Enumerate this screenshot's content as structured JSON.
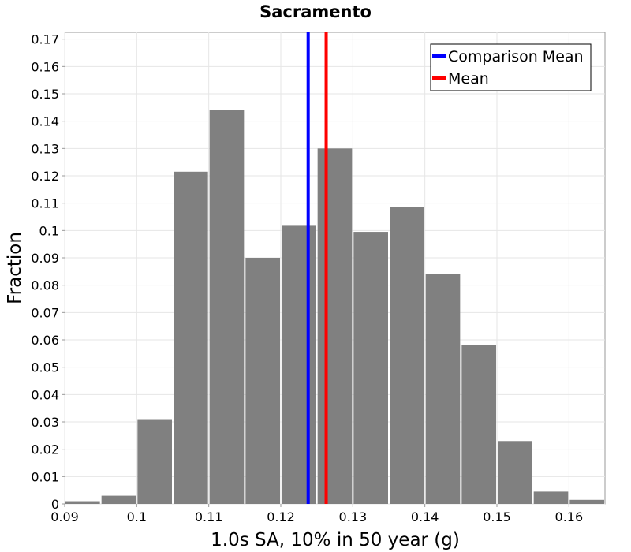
{
  "chart_data": {
    "type": "bar",
    "title": "Sacramento",
    "xlabel": "1.0s SA, 10% in 50 year (g)",
    "ylabel": "Fraction",
    "xlim": [
      0.09,
      0.165
    ],
    "ylim": [
      0,
      0.1725
    ],
    "xticks": [
      0.09,
      0.1,
      0.11,
      0.12,
      0.13,
      0.14,
      0.15,
      0.16
    ],
    "xtick_labels": [
      "0.09",
      "0.1",
      "0.11",
      "0.12",
      "0.13",
      "0.14",
      "0.15",
      "0.16"
    ],
    "yticks": [
      0,
      0.01,
      0.02,
      0.03,
      0.04,
      0.05,
      0.06,
      0.07,
      0.08,
      0.09,
      0.1,
      0.11,
      0.12,
      0.13,
      0.14,
      0.15,
      0.16,
      0.17
    ],
    "ytick_labels": [
      "0",
      "0.01",
      "0.02",
      "0.03",
      "0.04",
      "0.05",
      "0.06",
      "0.07",
      "0.08",
      "0.09",
      "0.1",
      "0.11",
      "0.12",
      "0.13",
      "0.14",
      "0.15",
      "0.16",
      "0.17"
    ],
    "bin_width": 0.005,
    "bins": [
      {
        "x": 0.0925,
        "value": 0.001
      },
      {
        "x": 0.0975,
        "value": 0.003
      },
      {
        "x": 0.1025,
        "value": 0.031
      },
      {
        "x": 0.1075,
        "value": 0.1215
      },
      {
        "x": 0.1125,
        "value": 0.144
      },
      {
        "x": 0.1175,
        "value": 0.09
      },
      {
        "x": 0.1225,
        "value": 0.102
      },
      {
        "x": 0.1275,
        "value": 0.13
      },
      {
        "x": 0.1325,
        "value": 0.0995
      },
      {
        "x": 0.1375,
        "value": 0.1085
      },
      {
        "x": 0.1425,
        "value": 0.084
      },
      {
        "x": 0.1475,
        "value": 0.058
      },
      {
        "x": 0.1525,
        "value": 0.023
      },
      {
        "x": 0.1575,
        "value": 0.0045
      },
      {
        "x": 0.1625,
        "value": 0.0015
      }
    ],
    "vlines": [
      {
        "name": "Comparison Mean",
        "x": 0.1238,
        "color": "#0000ff"
      },
      {
        "name": "Mean",
        "x": 0.1263,
        "color": "#ff0000"
      }
    ],
    "bar_color": "#808080",
    "grid": true,
    "legend_position": "top-right"
  }
}
